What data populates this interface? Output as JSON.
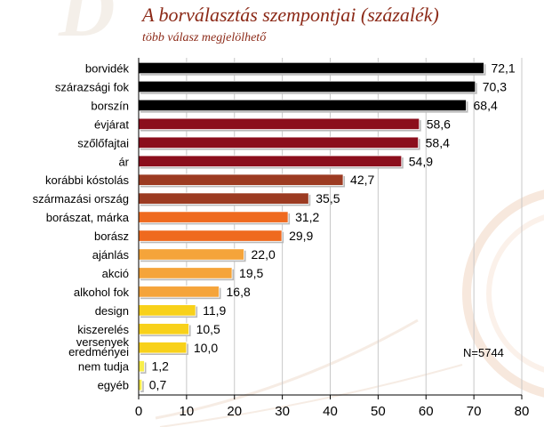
{
  "chart_data": {
    "type": "bar",
    "orientation": "horizontal",
    "title": "A borválasztás szempontjai (százalék)",
    "subtitle": "több válasz megjelölhető",
    "note": "N=5744",
    "categories": [
      "borvidék",
      "szárazsági fok",
      "borszín",
      "évjárat",
      "szőlőfajtai",
      "ár",
      "korábbi kóstolás",
      "származási ország",
      "borászat, márka",
      "borász",
      "ajánlás",
      "akció",
      "alkohol fok",
      "design",
      "kiszerelés",
      "versenyek eredményei",
      "nem tudja",
      "egyéb"
    ],
    "values": [
      72.1,
      70.3,
      68.4,
      58.6,
      58.4,
      54.9,
      42.7,
      35.5,
      31.2,
      29.9,
      22.0,
      19.5,
      16.8,
      11.9,
      10.5,
      10.0,
      1.2,
      0.7
    ],
    "value_labels": [
      "72,1",
      "70,3",
      "68,4",
      "58,6",
      "58,4",
      "54,9",
      "42,7",
      "35,5",
      "31,2",
      "29,9",
      "22,0",
      "19,5",
      "16,8",
      "11,9",
      "10,5",
      "10,0",
      "1,2",
      "0,7"
    ],
    "bar_colors": [
      "#000000",
      "#000000",
      "#000000",
      "#8b0e1c",
      "#8b0e1c",
      "#8b0e1c",
      "#9c3b22",
      "#9c3b22",
      "#ef6a1f",
      "#ef6a1f",
      "#f5a43a",
      "#f5a43a",
      "#f5a43a",
      "#f8d11a",
      "#f8d11a",
      "#f8d11a",
      "#f8ee4a",
      "#f8ee4a"
    ],
    "xlim": [
      0,
      80
    ],
    "xticks": [
      0,
      10,
      20,
      30,
      40,
      50,
      60,
      70,
      80
    ],
    "grid": true,
    "legend": "none"
  }
}
